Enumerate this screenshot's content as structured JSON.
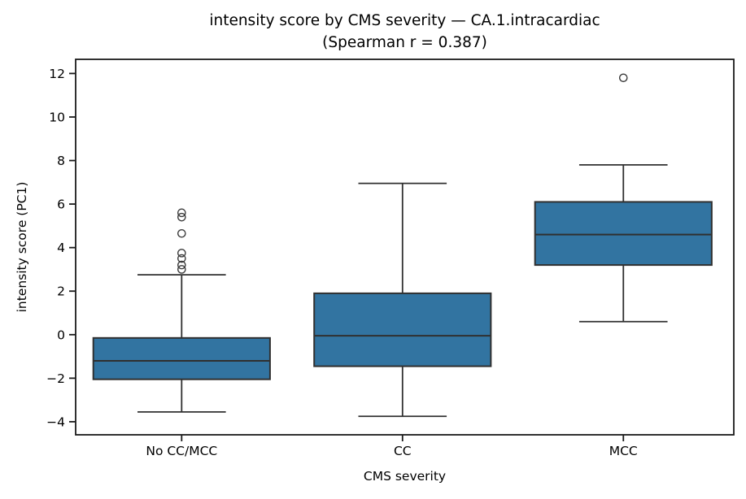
{
  "figure": {
    "title_line1": "intensity score by CMS severity — CA.1.intracardiac",
    "title_line2": "(Spearman r = 0.387)"
  },
  "chart_data": {
    "type": "boxplot",
    "title": "intensity score by CMS severity — CA.1.intracardiac\n(Spearman r = 0.387)",
    "subtitle": "(Spearman r = 0.387)",
    "spearman_r": 0.387,
    "xlabel": "CMS severity",
    "ylabel": "intensity score (PC1)",
    "categories": [
      "No CC/MCC",
      "CC",
      "MCC"
    ],
    "boxes": [
      {
        "category": "No CC/MCC",
        "whislo": -3.55,
        "q1": -2.05,
        "median": -1.2,
        "q3": -0.15,
        "whishi": 2.75,
        "outliers": [
          3.0,
          3.2,
          3.5,
          3.75,
          4.65,
          5.4,
          5.6
        ]
      },
      {
        "category": "CC",
        "whislo": -3.75,
        "q1": -1.45,
        "median": -0.05,
        "q3": 1.9,
        "whishi": 6.95,
        "outliers": []
      },
      {
        "category": "MCC",
        "whislo": 0.6,
        "q1": 3.2,
        "median": 4.6,
        "q3": 6.1,
        "whishi": 7.8,
        "outliers": [
          11.8
        ]
      }
    ],
    "yticks": [
      -4,
      -2,
      0,
      2,
      4,
      6,
      8,
      10,
      12
    ],
    "ylim": [
      -4.6,
      12.65
    ],
    "positions": [
      1,
      2,
      3
    ],
    "xlim": [
      0.52,
      3.5
    ],
    "box_width": 0.8,
    "grid": false,
    "legend": null,
    "colors": {
      "box_fill": "#3274a1",
      "box_edge": "#303030",
      "outlier_edge": "#3c3c3c",
      "spine": "#1a1a1a",
      "text": "#000000"
    }
  }
}
